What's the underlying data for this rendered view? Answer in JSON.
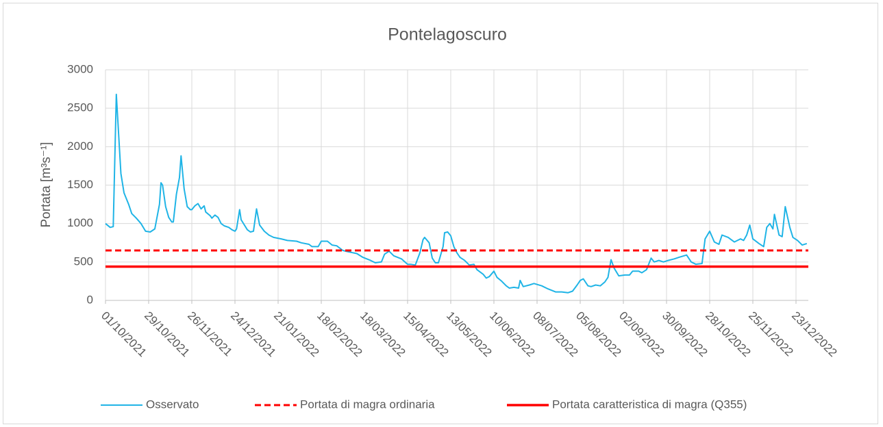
{
  "chart_data": {
    "type": "line",
    "title": "Pontelagoscuro",
    "y_label": "Portata [m³s⁻¹]",
    "ylim": [
      0,
      3000
    ],
    "yticks": [
      0,
      500,
      1000,
      1500,
      2000,
      2500,
      3000
    ],
    "xlim": [
      "01/10/2021",
      "31/12/2022"
    ],
    "xticks": [
      "01/10/2021",
      "29/10/2021",
      "26/11/2021",
      "24/12/2021",
      "21/01/2022",
      "18/02/2022",
      "18/03/2022",
      "15/04/2022",
      "13/05/2022",
      "10/06/2022",
      "08/07/2022",
      "05/08/2022",
      "02/09/2022",
      "30/09/2022",
      "28/10/2022",
      "25/11/2022",
      "23/12/2022"
    ],
    "grid": true,
    "legend": "bottom",
    "series": [
      {
        "name": "Osservato",
        "color": "#1fb4e6",
        "style": "solid",
        "x": [
          "01/10/2021",
          "04/10/2021",
          "06/10/2021",
          "08/10/2021",
          "11/10/2021",
          "13/10/2021",
          "16/10/2021",
          "18/10/2021",
          "21/10/2021",
          "24/10/2021",
          "27/10/2021",
          "30/10/2021",
          "02/11/2021",
          "05/11/2021",
          "06/11/2021",
          "07/11/2021",
          "09/11/2021",
          "11/11/2021",
          "13/11/2021",
          "14/11/2021",
          "16/11/2021",
          "18/11/2021",
          "19/11/2021",
          "21/11/2021",
          "23/11/2021",
          "25/11/2021",
          "26/11/2021",
          "28/11/2021",
          "30/11/2021",
          "02/12/2021",
          "04/12/2021",
          "05/12/2021",
          "08/12/2021",
          "09/12/2021",
          "11/12/2021",
          "13/12/2021",
          "15/12/2021",
          "17/12/2021",
          "20/12/2021",
          "22/12/2021",
          "24/12/2021",
          "25/12/2021",
          "27/12/2021",
          "28/12/2021",
          "01/01/2022",
          "03/01/2022",
          "05/01/2022",
          "07/01/2022",
          "09/01/2022",
          "12/01/2022",
          "15/01/2022",
          "18/01/2022",
          "23/01/2022",
          "27/01/2022",
          "02/02/2022",
          "05/02/2022",
          "10/02/2022",
          "12/02/2022",
          "16/02/2022",
          "18/02/2022",
          "22/02/2022",
          "25/02/2022",
          "28/02/2022",
          "04/03/2022",
          "08/03/2022",
          "13/03/2022",
          "17/03/2022",
          "22/03/2022",
          "25/03/2022",
          "29/03/2022",
          "31/03/2022",
          "03/04/2022",
          "06/04/2022",
          "11/04/2022",
          "15/04/2022",
          "17/04/2022",
          "20/04/2022",
          "23/04/2022",
          "25/04/2022",
          "26/04/2022",
          "29/04/2022",
          "01/05/2022",
          "03/05/2022",
          "05/05/2022",
          "08/05/2022",
          "09/05/2022",
          "11/05/2022",
          "13/05/2022",
          "15/05/2022",
          "17/05/2022",
          "19/05/2022",
          "22/05/2022",
          "25/05/2022",
          "28/05/2022",
          "30/05/2022",
          "03/06/2022",
          "05/06/2022",
          "07/06/2022",
          "10/06/2022",
          "12/06/2022",
          "15/06/2022",
          "18/06/2022",
          "20/06/2022",
          "23/06/2022",
          "26/06/2022",
          "27/06/2022",
          "29/06/2022",
          "03/07/2022",
          "06/07/2022",
          "11/07/2022",
          "15/07/2022",
          "20/07/2022",
          "24/07/2022",
          "28/07/2022",
          "31/07/2022",
          "03/08/2022",
          "05/08/2022",
          "07/08/2022",
          "10/08/2022",
          "12/08/2022",
          "15/08/2022",
          "18/08/2022",
          "21/08/2022",
          "23/08/2022",
          "25/08/2022",
          "27/08/2022",
          "30/08/2022",
          "03/09/2022",
          "06/09/2022",
          "08/09/2022",
          "12/09/2022",
          "14/09/2022",
          "17/09/2022",
          "20/09/2022",
          "22/09/2022",
          "25/09/2022",
          "28/09/2022",
          "01/10/2022",
          "05/10/2022",
          "08/10/2022",
          "13/10/2022",
          "16/10/2022",
          "19/10/2022",
          "23/10/2022",
          "25/10/2022",
          "28/10/2022",
          "31/10/2022",
          "03/11/2022",
          "05/11/2022",
          "09/11/2022",
          "11/11/2022",
          "13/11/2022",
          "17/11/2022",
          "19/11/2022",
          "21/11/2022",
          "23/11/2022",
          "25/11/2022",
          "29/11/2022",
          "02/12/2022",
          "04/12/2022",
          "06/12/2022",
          "08/12/2022",
          "09/12/2022",
          "12/12/2022",
          "14/12/2022",
          "16/12/2022",
          "19/12/2022",
          "21/12/2022",
          "24/12/2022",
          "27/12/2022",
          "30/12/2022"
        ],
        "values": [
          1000,
          950,
          960,
          2680,
          1650,
          1400,
          1250,
          1130,
          1070,
          1000,
          900,
          890,
          930,
          1250,
          1530,
          1500,
          1220,
          1080,
          1020,
          1020,
          1380,
          1600,
          1880,
          1450,
          1220,
          1180,
          1180,
          1230,
          1260,
          1190,
          1230,
          1150,
          1100,
          1070,
          1110,
          1080,
          1000,
          970,
          950,
          920,
          900,
          930,
          1180,
          1050,
          920,
          890,
          900,
          1190,
          980,
          900,
          850,
          820,
          800,
          780,
          770,
          750,
          730,
          700,
          700,
          770,
          770,
          720,
          710,
          650,
          630,
          610,
          560,
          520,
          490,
          500,
          600,
          640,
          580,
          540,
          470,
          470,
          460,
          620,
          790,
          820,
          750,
          550,
          490,
          490,
          700,
          880,
          890,
          840,
          700,
          620,
          560,
          520,
          460,
          470,
          400,
          340,
          290,
          310,
          380,
          300,
          250,
          190,
          160,
          170,
          160,
          260,
          180,
          200,
          220,
          190,
          150,
          110,
          110,
          100,
          120,
          200,
          260,
          280,
          190,
          180,
          200,
          190,
          240,
          300,
          530,
          420,
          320,
          330,
          330,
          380,
          380,
          360,
          400,
          550,
          500,
          520,
          500,
          520,
          540,
          560,
          590,
          500,
          470,
          480,
          800,
          900,
          760,
          730,
          850,
          820,
          790,
          760,
          800,
          780,
          850,
          980,
          800,
          740,
          700,
          950,
          1000,
          930,
          1120,
          850,
          830,
          1220,
          950,
          820,
          780,
          720,
          740
        ]
      },
      {
        "name": "Portata di magra ordinaria",
        "color": "#ff0000",
        "style": "dashed",
        "x": [
          "01/10/2021",
          "31/12/2022"
        ],
        "values": [
          650,
          650
        ]
      },
      {
        "name": "Portata caratteristica di magra (Q355)",
        "color": "#ff0000",
        "style": "solid",
        "x": [
          "01/10/2021",
          "31/12/2022"
        ],
        "values": [
          440,
          440
        ]
      }
    ]
  }
}
